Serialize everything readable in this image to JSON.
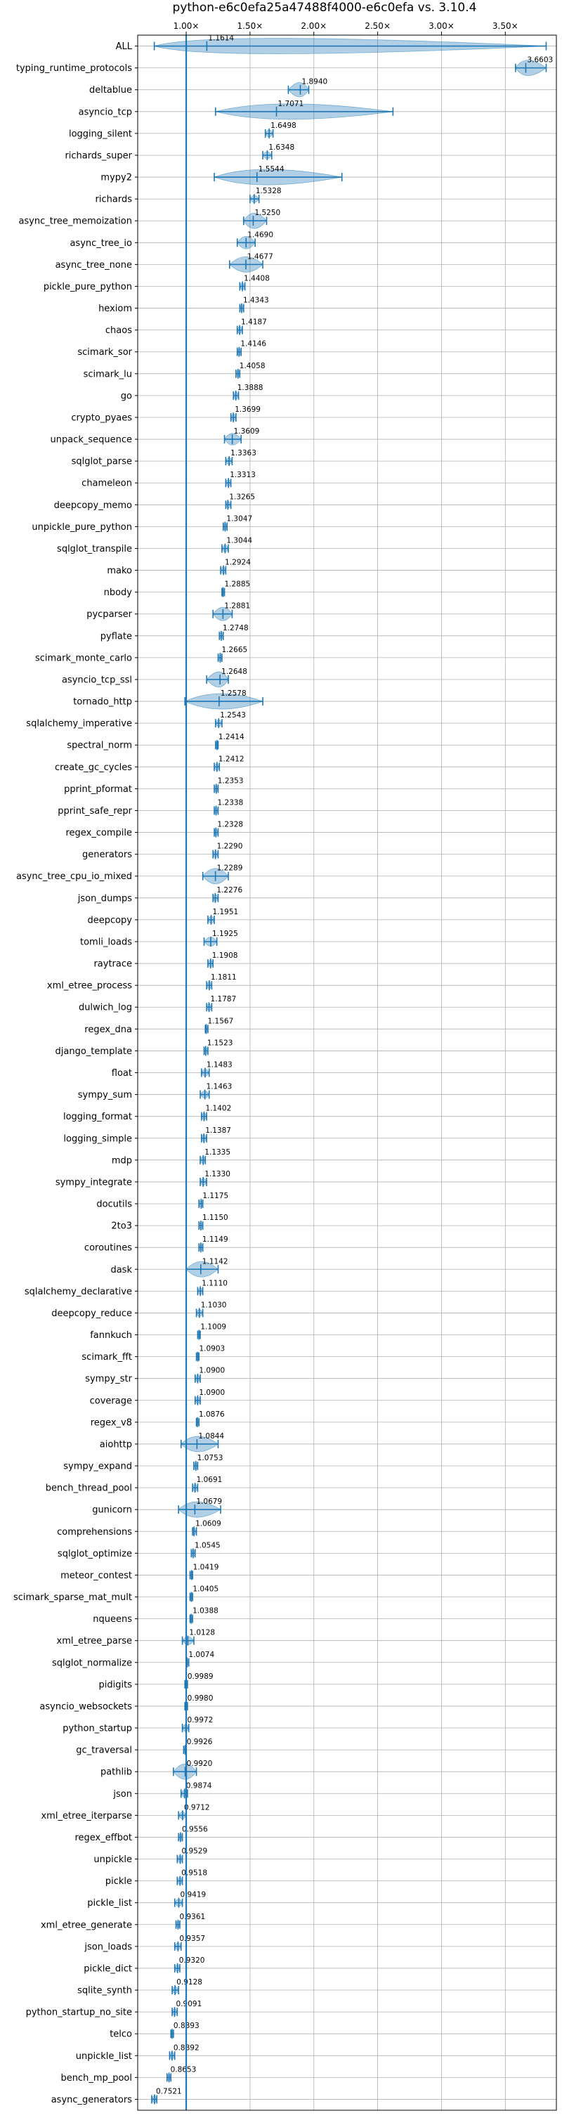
{
  "chart_data": {
    "type": "violin",
    "title": "python-e6c0efa25a47488f4000-e6c0efa vs. 3.10.4",
    "xlim": [
      0.62,
      3.9
    ],
    "x_ticks": [
      {
        "value": 1.0,
        "label": "1.00×"
      },
      {
        "value": 1.5,
        "label": "1.50×"
      },
      {
        "value": 2.0,
        "label": "2.00×"
      },
      {
        "value": 2.5,
        "label": "2.50×"
      },
      {
        "value": 3.0,
        "label": "3.00×"
      },
      {
        "value": 3.5,
        "label": "3.50×"
      }
    ],
    "x_axis_position": "top",
    "grid": true,
    "reference_line": 1.0,
    "colors": {
      "violin": "#1f77b4",
      "grid": "#b0b0b0",
      "text": "#000000"
    },
    "benchmarks": [
      {
        "name": "ALL",
        "value": 1.1614,
        "min": 0.75,
        "max": 3.82,
        "label": "1.1614"
      },
      {
        "name": "typing_runtime_protocols",
        "value": 3.6603,
        "min": 3.58,
        "max": 3.82,
        "label": "3.6603"
      },
      {
        "name": "deltablue",
        "value": 1.894,
        "min": 1.8,
        "max": 1.96,
        "label": "1.8940"
      },
      {
        "name": "asyncio_tcp",
        "value": 1.7071,
        "min": 1.23,
        "max": 2.62,
        "label": "1.7071"
      },
      {
        "name": "logging_silent",
        "value": 1.6498,
        "min": 1.62,
        "max": 1.68,
        "label": "1.6498"
      },
      {
        "name": "richards_super",
        "value": 1.6348,
        "min": 1.6,
        "max": 1.67,
        "label": "1.6348"
      },
      {
        "name": "mypy2",
        "value": 1.5544,
        "min": 1.22,
        "max": 2.22,
        "label": "1.5544"
      },
      {
        "name": "richards",
        "value": 1.5328,
        "min": 1.5,
        "max": 1.57,
        "label": "1.5328"
      },
      {
        "name": "async_tree_memoization",
        "value": 1.525,
        "min": 1.45,
        "max": 1.63,
        "label": "1.5250"
      },
      {
        "name": "async_tree_io",
        "value": 1.469,
        "min": 1.4,
        "max": 1.54,
        "label": "1.4690"
      },
      {
        "name": "async_tree_none",
        "value": 1.4677,
        "min": 1.34,
        "max": 1.6,
        "label": "1.4677"
      },
      {
        "name": "pickle_pure_python",
        "value": 1.4408,
        "min": 1.42,
        "max": 1.46,
        "label": "1.4408"
      },
      {
        "name": "hexiom",
        "value": 1.4343,
        "min": 1.42,
        "max": 1.45,
        "label": "1.4343"
      },
      {
        "name": "chaos",
        "value": 1.4187,
        "min": 1.4,
        "max": 1.44,
        "label": "1.4187"
      },
      {
        "name": "scimark_sor",
        "value": 1.4146,
        "min": 1.4,
        "max": 1.43,
        "label": "1.4146"
      },
      {
        "name": "scimark_lu",
        "value": 1.4058,
        "min": 1.39,
        "max": 1.42,
        "label": "1.4058"
      },
      {
        "name": "go",
        "value": 1.3888,
        "min": 1.37,
        "max": 1.41,
        "label": "1.3888"
      },
      {
        "name": "crypto_pyaes",
        "value": 1.3699,
        "min": 1.35,
        "max": 1.39,
        "label": "1.3699"
      },
      {
        "name": "unpack_sequence",
        "value": 1.3609,
        "min": 1.3,
        "max": 1.43,
        "label": "1.3609"
      },
      {
        "name": "sqlglot_parse",
        "value": 1.3363,
        "min": 1.31,
        "max": 1.36,
        "label": "1.3363"
      },
      {
        "name": "chameleon",
        "value": 1.3313,
        "min": 1.31,
        "max": 1.35,
        "label": "1.3313"
      },
      {
        "name": "deepcopy_memo",
        "value": 1.3265,
        "min": 1.31,
        "max": 1.35,
        "label": "1.3265"
      },
      {
        "name": "unpickle_pure_python",
        "value": 1.3047,
        "min": 1.29,
        "max": 1.32,
        "label": "1.3047"
      },
      {
        "name": "sqlglot_transpile",
        "value": 1.3044,
        "min": 1.28,
        "max": 1.33,
        "label": "1.3044"
      },
      {
        "name": "mako",
        "value": 1.2924,
        "min": 1.27,
        "max": 1.31,
        "label": "1.2924"
      },
      {
        "name": "nbody",
        "value": 1.2885,
        "min": 1.28,
        "max": 1.3,
        "label": "1.2885"
      },
      {
        "name": "pycparser",
        "value": 1.2881,
        "min": 1.21,
        "max": 1.36,
        "label": "1.2881"
      },
      {
        "name": "pyflate",
        "value": 1.2748,
        "min": 1.26,
        "max": 1.29,
        "label": "1.2748"
      },
      {
        "name": "scimark_monte_carlo",
        "value": 1.2665,
        "min": 1.25,
        "max": 1.28,
        "label": "1.2665"
      },
      {
        "name": "asyncio_tcp_ssl",
        "value": 1.2648,
        "min": 1.16,
        "max": 1.33,
        "label": "1.2648"
      },
      {
        "name": "tornado_http",
        "value": 1.2578,
        "min": 0.99,
        "max": 1.6,
        "label": "1.2578"
      },
      {
        "name": "sqlalchemy_imperative",
        "value": 1.2543,
        "min": 1.23,
        "max": 1.28,
        "label": "1.2543"
      },
      {
        "name": "spectral_norm",
        "value": 1.2414,
        "min": 1.23,
        "max": 1.25,
        "label": "1.2414"
      },
      {
        "name": "create_gc_cycles",
        "value": 1.2412,
        "min": 1.22,
        "max": 1.26,
        "label": "1.2412"
      },
      {
        "name": "pprint_pformat",
        "value": 1.2353,
        "min": 1.22,
        "max": 1.25,
        "label": "1.2353"
      },
      {
        "name": "pprint_safe_repr",
        "value": 1.2338,
        "min": 1.22,
        "max": 1.25,
        "label": "1.2338"
      },
      {
        "name": "regex_compile",
        "value": 1.2328,
        "min": 1.22,
        "max": 1.25,
        "label": "1.2328"
      },
      {
        "name": "generators",
        "value": 1.229,
        "min": 1.21,
        "max": 1.25,
        "label": "1.2290"
      },
      {
        "name": "async_tree_cpu_io_mixed",
        "value": 1.2289,
        "min": 1.13,
        "max": 1.33,
        "label": "1.2289"
      },
      {
        "name": "json_dumps",
        "value": 1.2276,
        "min": 1.21,
        "max": 1.25,
        "label": "1.2276"
      },
      {
        "name": "deepcopy",
        "value": 1.1951,
        "min": 1.17,
        "max": 1.22,
        "label": "1.1951"
      },
      {
        "name": "tomli_loads",
        "value": 1.1925,
        "min": 1.14,
        "max": 1.24,
        "label": "1.1925"
      },
      {
        "name": "raytrace",
        "value": 1.1908,
        "min": 1.17,
        "max": 1.21,
        "label": "1.1908"
      },
      {
        "name": "xml_etree_process",
        "value": 1.1811,
        "min": 1.16,
        "max": 1.2,
        "label": "1.1811"
      },
      {
        "name": "dulwich_log",
        "value": 1.1787,
        "min": 1.16,
        "max": 1.2,
        "label": "1.1787"
      },
      {
        "name": "regex_dna",
        "value": 1.1567,
        "min": 1.15,
        "max": 1.17,
        "label": "1.1567"
      },
      {
        "name": "django_template",
        "value": 1.1523,
        "min": 1.14,
        "max": 1.17,
        "label": "1.1523"
      },
      {
        "name": "float",
        "value": 1.1483,
        "min": 1.12,
        "max": 1.18,
        "label": "1.1483"
      },
      {
        "name": "sympy_sum",
        "value": 1.1463,
        "min": 1.11,
        "max": 1.18,
        "label": "1.1463"
      },
      {
        "name": "logging_format",
        "value": 1.1402,
        "min": 1.12,
        "max": 1.16,
        "label": "1.1402"
      },
      {
        "name": "logging_simple",
        "value": 1.1387,
        "min": 1.12,
        "max": 1.16,
        "label": "1.1387"
      },
      {
        "name": "mdp",
        "value": 1.1335,
        "min": 1.11,
        "max": 1.15,
        "label": "1.1335"
      },
      {
        "name": "sympy_integrate",
        "value": 1.133,
        "min": 1.11,
        "max": 1.16,
        "label": "1.1330"
      },
      {
        "name": "docutils",
        "value": 1.1175,
        "min": 1.1,
        "max": 1.13,
        "label": "1.1175"
      },
      {
        "name": "2to3",
        "value": 1.115,
        "min": 1.1,
        "max": 1.13,
        "label": "1.1150"
      },
      {
        "name": "coroutines",
        "value": 1.1149,
        "min": 1.1,
        "max": 1.13,
        "label": "1.1149"
      },
      {
        "name": "dask",
        "value": 1.1142,
        "min": 1.0,
        "max": 1.25,
        "label": "1.1142"
      },
      {
        "name": "sqlalchemy_declarative",
        "value": 1.111,
        "min": 1.09,
        "max": 1.13,
        "label": "1.1110"
      },
      {
        "name": "deepcopy_reduce",
        "value": 1.103,
        "min": 1.08,
        "max": 1.13,
        "label": "1.1030"
      },
      {
        "name": "fannkuch",
        "value": 1.1009,
        "min": 1.09,
        "max": 1.11,
        "label": "1.1009"
      },
      {
        "name": "scimark_fft",
        "value": 1.0903,
        "min": 1.08,
        "max": 1.1,
        "label": "1.0903"
      },
      {
        "name": "sympy_str",
        "value": 1.09,
        "min": 1.07,
        "max": 1.11,
        "label": "1.0900"
      },
      {
        "name": "coverage",
        "value": 1.09,
        "min": 1.07,
        "max": 1.11,
        "label": "1.0900"
      },
      {
        "name": "regex_v8",
        "value": 1.0876,
        "min": 1.08,
        "max": 1.1,
        "label": "1.0876"
      },
      {
        "name": "aiohttp",
        "value": 1.0844,
        "min": 0.96,
        "max": 1.25,
        "label": "1.0844"
      },
      {
        "name": "sympy_expand",
        "value": 1.0753,
        "min": 1.06,
        "max": 1.09,
        "label": "1.0753"
      },
      {
        "name": "bench_thread_pool",
        "value": 1.0691,
        "min": 1.05,
        "max": 1.09,
        "label": "1.0691"
      },
      {
        "name": "gunicorn",
        "value": 1.0679,
        "min": 0.94,
        "max": 1.27,
        "label": "1.0679"
      },
      {
        "name": "comprehensions",
        "value": 1.0609,
        "min": 1.05,
        "max": 1.08,
        "label": "1.0609"
      },
      {
        "name": "sqlglot_optimize",
        "value": 1.0545,
        "min": 1.04,
        "max": 1.07,
        "label": "1.0545"
      },
      {
        "name": "meteor_contest",
        "value": 1.0419,
        "min": 1.03,
        "max": 1.05,
        "label": "1.0419"
      },
      {
        "name": "scimark_sparse_mat_mult",
        "value": 1.0405,
        "min": 1.03,
        "max": 1.05,
        "label": "1.0405"
      },
      {
        "name": "nqueens",
        "value": 1.0388,
        "min": 1.03,
        "max": 1.05,
        "label": "1.0388"
      },
      {
        "name": "xml_etree_parse",
        "value": 1.0128,
        "min": 0.97,
        "max": 1.06,
        "label": "1.0128"
      },
      {
        "name": "sqlglot_normalize",
        "value": 1.0074,
        "min": 1.0,
        "max": 1.02,
        "label": "1.0074"
      },
      {
        "name": "pidigits",
        "value": 0.9989,
        "min": 0.99,
        "max": 1.01,
        "label": "0.9989"
      },
      {
        "name": "asyncio_websockets",
        "value": 0.998,
        "min": 0.99,
        "max": 1.01,
        "label": "0.9980"
      },
      {
        "name": "python_startup",
        "value": 0.9972,
        "min": 0.97,
        "max": 1.02,
        "label": "0.9972"
      },
      {
        "name": "gc_traversal",
        "value": 0.9926,
        "min": 0.98,
        "max": 1.0,
        "label": "0.9926"
      },
      {
        "name": "pathlib",
        "value": 0.992,
        "min": 0.9,
        "max": 1.08,
        "label": "0.9920"
      },
      {
        "name": "json",
        "value": 0.9874,
        "min": 0.96,
        "max": 1.01,
        "label": "0.9874"
      },
      {
        "name": "xml_etree_iterparse",
        "value": 0.9712,
        "min": 0.94,
        "max": 1.0,
        "label": "0.9712"
      },
      {
        "name": "regex_effbot",
        "value": 0.9556,
        "min": 0.94,
        "max": 0.97,
        "label": "0.9556"
      },
      {
        "name": "unpickle",
        "value": 0.9529,
        "min": 0.93,
        "max": 0.97,
        "label": "0.9529"
      },
      {
        "name": "pickle",
        "value": 0.9518,
        "min": 0.93,
        "max": 0.97,
        "label": "0.9518"
      },
      {
        "name": "pickle_list",
        "value": 0.9419,
        "min": 0.91,
        "max": 0.97,
        "label": "0.9419"
      },
      {
        "name": "xml_etree_generate",
        "value": 0.9361,
        "min": 0.92,
        "max": 0.95,
        "label": "0.9361"
      },
      {
        "name": "json_loads",
        "value": 0.9357,
        "min": 0.91,
        "max": 0.96,
        "label": "0.9357"
      },
      {
        "name": "pickle_dict",
        "value": 0.932,
        "min": 0.91,
        "max": 0.95,
        "label": "0.9320"
      },
      {
        "name": "sqlite_synth",
        "value": 0.9128,
        "min": 0.89,
        "max": 0.94,
        "label": "0.9128"
      },
      {
        "name": "python_startup_no_site",
        "value": 0.9091,
        "min": 0.89,
        "max": 0.93,
        "label": "0.9091"
      },
      {
        "name": "telco",
        "value": 0.8893,
        "min": 0.88,
        "max": 0.9,
        "label": "0.8893"
      },
      {
        "name": "unpickle_list",
        "value": 0.8892,
        "min": 0.87,
        "max": 0.91,
        "label": "0.8892"
      },
      {
        "name": "bench_mp_pool",
        "value": 0.8653,
        "min": 0.85,
        "max": 0.88,
        "label": "0.8653"
      },
      {
        "name": "async_generators",
        "value": 0.7521,
        "min": 0.73,
        "max": 0.77,
        "label": "0.7521"
      }
    ]
  }
}
